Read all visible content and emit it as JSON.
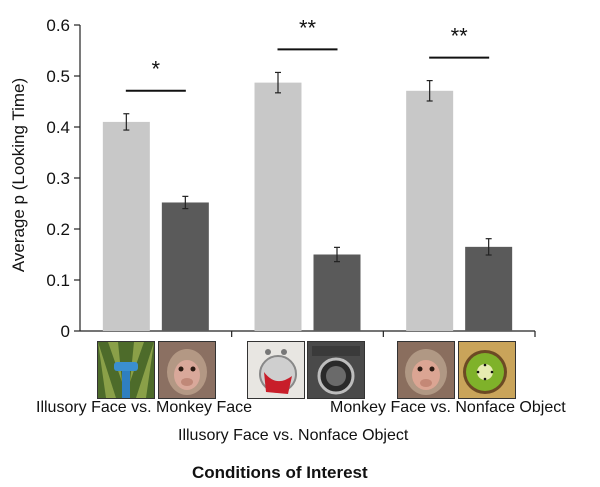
{
  "chart_data": {
    "type": "bar",
    "ylabel": "Average  p (Looking Time)",
    "xlabel": "Conditions of Interest",
    "ylim": [
      0,
      0.6
    ],
    "yticks": [
      "0",
      "0.1",
      "0.2",
      "0.3",
      "0.4",
      "0.5",
      "0.6"
    ],
    "grid": false,
    "groups": [
      {
        "condition": "Illusory Face vs. Monkey Face",
        "significance": "*",
        "bars": [
          {
            "stimulus": "illusory-face",
            "value": 0.41,
            "error": 0.016,
            "color": "#c8c8c8"
          },
          {
            "stimulus": "monkey-face",
            "value": 0.252,
            "error": 0.012,
            "color": "#5a5a5a"
          }
        ]
      },
      {
        "condition": "Illusory Face vs. Nonface Object",
        "significance": "**",
        "bars": [
          {
            "stimulus": "illusory-face",
            "value": 0.487,
            "error": 0.02,
            "color": "#c8c8c8"
          },
          {
            "stimulus": "nonface-object",
            "value": 0.15,
            "error": 0.014,
            "color": "#5a5a5a"
          }
        ]
      },
      {
        "condition": "Monkey Face vs. Nonface Object",
        "significance": "**",
        "bars": [
          {
            "stimulus": "monkey-face",
            "value": 0.471,
            "error": 0.02,
            "color": "#c8c8c8"
          },
          {
            "stimulus": "nonface-object",
            "value": 0.165,
            "error": 0.016,
            "color": "#5a5a5a"
          }
        ]
      }
    ]
  }
}
